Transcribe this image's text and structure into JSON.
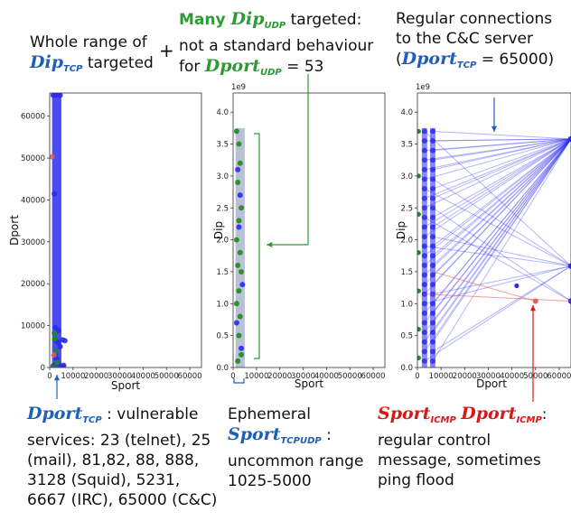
{
  "annotations": {
    "left_top": {
      "line1": "Whole range of",
      "sym": "Dip",
      "sub": "TCP",
      "rest": " targeted"
    },
    "plus": "+",
    "middle_top": {
      "many": "Many ",
      "sym": "Dip",
      "sub": "UDP",
      "rest1": " targeted:",
      "line2": "not a standard behaviour",
      "line3_pre": "for ",
      "sym2": "Dport",
      "sub2": "UDP",
      "line3_post": " = 53"
    },
    "right_top": {
      "line1": "Regular connections",
      "line2": "to the C&C server",
      "line3_pre": "(",
      "sym": "Dport",
      "sub": "TCP",
      "line3_post": " = 65000)"
    },
    "bottom_left": {
      "sym": "Dport",
      "sub": "TCP",
      "line1_post": " : vulnerable",
      "line2": "services: 23 (telnet), 25",
      "line3": "(mail), 81,82, 88, 888,",
      "line4": "3128 (Squid), 5231,",
      "line5": "6667 (IRC), 65000 (C&C)"
    },
    "bottom_middle": {
      "line1": "Ephemeral",
      "sym": "Sport",
      "sub": "TCPUDP",
      "line2_post": " :",
      "line3": "uncommon range",
      "line4": "1025-5000"
    },
    "bottom_right": {
      "sym1": "Sport",
      "sub1": "ICMP",
      "sym2": "Dport",
      "sub2": "ICMP",
      "line1_post": ":",
      "line2": "regular control",
      "line3": "message, sometimes",
      "line4": "ping flood"
    }
  },
  "colors": {
    "blue_text": "#1f5fb6",
    "green_text": "#2e9a35",
    "red_text": "#d81818",
    "tcp_series": "#2b2bf0",
    "udp_series": "#1f8a1f",
    "icmp_series": "#e0605a"
  },
  "chart_data": [
    {
      "type": "scatter",
      "xlabel": "Sport",
      "ylabel": "Dport",
      "xlim": [
        0,
        65000
      ],
      "ylim": [
        0,
        65535
      ],
      "xticks": [
        "0",
        "10000",
        "20000",
        "30000",
        "40000",
        "50000",
        "60000"
      ],
      "yticks": [
        "0",
        "10000",
        "20000",
        "30000",
        "40000",
        "50000",
        "60000"
      ],
      "bands": [
        {
          "x0": 1025,
          "x1": 5000,
          "y0": 0,
          "y1": 65535,
          "color": "#2b2bf0"
        }
      ],
      "series": [
        {
          "color": "#2b2bf0",
          "points": [
            [
              1500,
              65000
            ],
            [
              3000,
              65000
            ],
            [
              4500,
              65000
            ],
            [
              2000,
              41500
            ],
            [
              2500,
              6500
            ],
            [
              3500,
              6000
            ],
            [
              4500,
              5000
            ],
            [
              5500,
              6600
            ],
            [
              6500,
              6400
            ],
            [
              2500,
              3000
            ],
            [
              3000,
              2000
            ],
            [
              6000,
              500
            ],
            [
              1500,
              400
            ],
            [
              4000,
              800
            ],
            [
              5500,
              300
            ],
            [
              2500,
              9500
            ],
            [
              3800,
              8800
            ]
          ]
        },
        {
          "color": "#1f8a1f",
          "points": [
            [
              1500,
              53
            ],
            [
              2000,
              8200
            ],
            [
              2200,
              6800
            ],
            [
              2800,
              4000
            ],
            [
              3200,
              1200
            ]
          ]
        },
        {
          "color": "#e0605a",
          "points": [
            [
              1000,
              50300
            ],
            [
              1800,
              3000
            ]
          ]
        }
      ]
    },
    {
      "type": "scatter",
      "xlabel": "Sport",
      "ylabel": "Dip",
      "scale_label": "1e9",
      "xlim": [
        0,
        65000
      ],
      "ylim": [
        0,
        4300000000
      ],
      "xticks": [
        "0",
        "10000",
        "20000",
        "30000",
        "40000",
        "50000",
        "60000"
      ],
      "yticks": [
        "0.0",
        "0.5",
        "1.0",
        "1.5",
        "2.0",
        "2.5",
        "3.0",
        "3.5",
        "4.0"
      ],
      "bands": [
        {
          "x0": 1025,
          "x1": 5000,
          "y0": 0,
          "y1": 3750000000,
          "color": "#7d8fb0"
        }
      ],
      "series": [
        {
          "color": "#1f8a1f",
          "points": [
            [
              1500,
              3700000000
            ],
            [
              2500,
              3500000000
            ],
            [
              3000,
              3200000000
            ],
            [
              2000,
              2900000000
            ],
            [
              3500,
              2500000000
            ],
            [
              2500,
              2300000000
            ],
            [
              1500,
              2000000000
            ],
            [
              3000,
              1800000000
            ],
            [
              2000,
              1600000000
            ],
            [
              3500,
              1500000000
            ],
            [
              2500,
              1200000000
            ],
            [
              1500,
              1000000000
            ],
            [
              3000,
              800000000
            ],
            [
              2500,
              500000000
            ],
            [
              3500,
              200000000
            ],
            [
              2000,
              100000000
            ]
          ]
        },
        {
          "color": "#2b2bf0",
          "points": [
            [
              2000,
              3100000000
            ],
            [
              3000,
              2700000000
            ],
            [
              2500,
              2200000000
            ],
            [
              4000,
              1300000000
            ],
            [
              1500,
              700000000
            ],
            [
              3500,
              300000000
            ]
          ]
        }
      ]
    },
    {
      "type": "line",
      "xlabel": "Dport",
      "ylabel": "Dip",
      "scale_label": "1e9",
      "xlim": [
        0,
        65000
      ],
      "ylim": [
        0,
        4300000000
      ],
      "xticks": [
        "0",
        "10000",
        "20000",
        "30000",
        "40000",
        "50000",
        "60000"
      ],
      "yticks": [
        "0.0",
        "0.5",
        "1.0",
        "1.5",
        "2.0",
        "2.5",
        "3.0",
        "3.5",
        "4.0"
      ],
      "targets": [
        [
          65000,
          3580000000
        ],
        [
          65000,
          1590000000
        ],
        [
          65000,
          1040000000
        ]
      ],
      "sources_x": [
        3000,
        6500
      ],
      "sources_y": [
        3700000000,
        3550000000,
        3400000000,
        3250000000,
        3100000000,
        2950000000,
        2800000000,
        2650000000,
        2500000000,
        2350000000,
        2200000000,
        2050000000,
        1900000000,
        1750000000,
        1600000000,
        1450000000,
        1300000000,
        1150000000,
        1000000000,
        850000000,
        700000000,
        550000000,
        400000000,
        250000000,
        100000000
      ],
      "icmp_links": [
        [
          [
            6500,
            1500000000
          ],
          [
            50000,
            1040000000
          ]
        ],
        [
          [
            3000,
            1150000000
          ],
          [
            65000,
            1040000000
          ]
        ]
      ],
      "icmp_points": [
        [
          50000,
          1040000000
        ]
      ],
      "stray_points": [
        [
          42000,
          1280000000
        ]
      ]
    }
  ]
}
